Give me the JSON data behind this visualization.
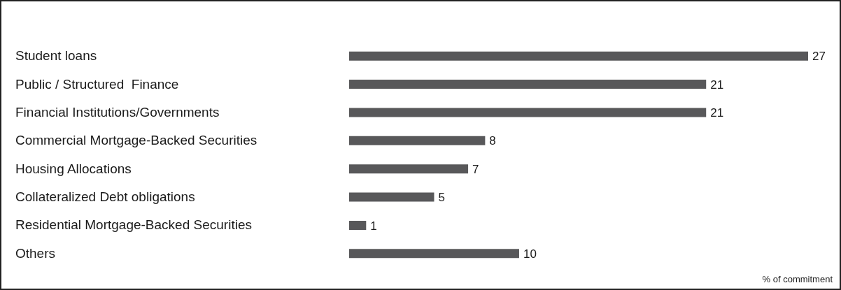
{
  "chart_data": {
    "type": "bar",
    "orientation": "horizontal",
    "categories": [
      "Student loans",
      "Public / Structured  Finance",
      "Financial Institutions/Governments",
      "Commercial Mortgage-Backed Securities",
      "Housing Allocations",
      "Collateralized Debt obligations",
      "Residential Mortgage-Backed Securities",
      "Others"
    ],
    "values": [
      27,
      21,
      21,
      8,
      7,
      5,
      1,
      10
    ],
    "color": "#58585a",
    "data_labels": true,
    "annotations": [
      "% of commitment"
    ]
  }
}
